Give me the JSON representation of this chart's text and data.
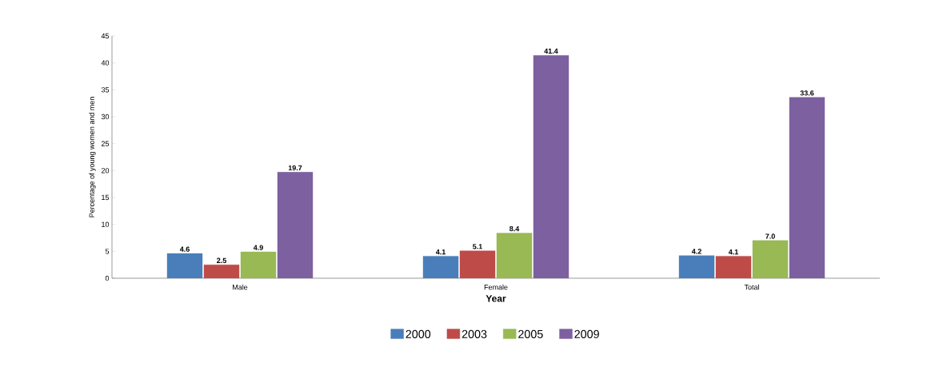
{
  "chart_data": {
    "type": "bar",
    "xlabel": "Year",
    "ylabel": "Percentage of young women and men",
    "categories": [
      "Male",
      "Female",
      "Total"
    ],
    "series": [
      {
        "name": "2000",
        "color": "#4a7ebb",
        "values": [
          4.6,
          4.1,
          4.2
        ],
        "value_labels": [
          "4.6",
          "4.1",
          "4.2"
        ]
      },
      {
        "name": "2003",
        "color": "#be4b48",
        "values": [
          2.5,
          5.1,
          4.1
        ],
        "value_labels": [
          "2.5",
          "5.1",
          "4.1"
        ]
      },
      {
        "name": "2005",
        "color": "#98b954",
        "values": [
          4.9,
          8.4,
          7.0
        ],
        "value_labels": [
          "4.9",
          "8.4",
          "7.0"
        ]
      },
      {
        "name": "2009",
        "color": "#7d60a0",
        "values": [
          19.7,
          41.4,
          33.6
        ],
        "value_labels": [
          "19.7",
          "41.4",
          "33.6"
        ]
      }
    ],
    "ylim": [
      0,
      45
    ],
    "yticks": [
      0,
      5,
      10,
      15,
      20,
      25,
      30,
      35,
      40,
      45
    ],
    "grid": false,
    "legend": "bottom"
  }
}
